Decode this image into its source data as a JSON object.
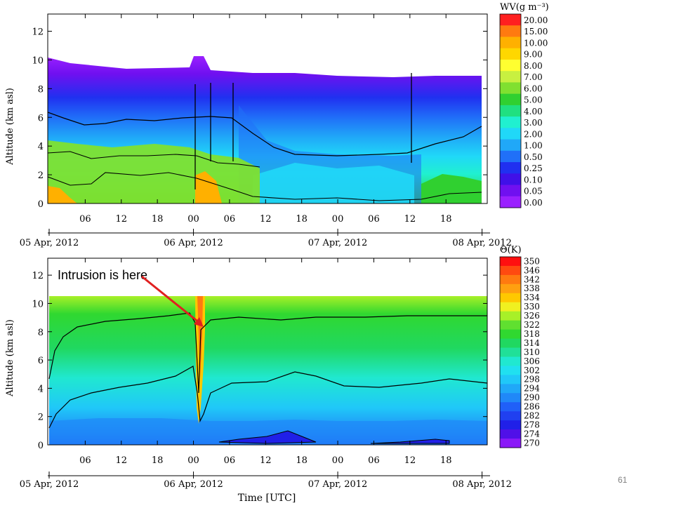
{
  "slide": {
    "page_number": "61"
  },
  "chart_data": [
    {
      "type": "heatmap",
      "title": "",
      "ylabel": "Altitude (km asl)",
      "xlabel": "",
      "ylim": [
        0,
        13
      ],
      "yticks": [
        0,
        2,
        4,
        6,
        8,
        10,
        12
      ],
      "x_hour_ticks": [
        "06",
        "12",
        "18",
        "00",
        "06",
        "12",
        "18",
        "00",
        "06",
        "12",
        "18"
      ],
      "x_hour_values": [
        6,
        12,
        18,
        24,
        30,
        36,
        42,
        48,
        54,
        60,
        66
      ],
      "date_labels": [
        "05 Apr, 2012",
        "06 Apr, 2012",
        "07 Apr, 2012",
        "08 Apr, 2012"
      ],
      "date_values": [
        0,
        24,
        48,
        72
      ],
      "xlim": [
        0,
        72
      ],
      "colorbar": {
        "title": "WV(g m⁻³)",
        "levels": [
          "20.00",
          "15.00",
          "10.00",
          "9.00",
          "8.00",
          "7.00",
          "6.00",
          "5.00",
          "4.00",
          "3.00",
          "2.00",
          "1.00",
          "0.50",
          "0.25",
          "0.10",
          "0.05",
          "0.00"
        ],
        "colors": [
          "#ff2020",
          "#ff7a10",
          "#ffb000",
          "#ffd700",
          "#ffff30",
          "#c8f040",
          "#80e030",
          "#30d030",
          "#20e080",
          "#20f0d0",
          "#20d8f8",
          "#20a8f8",
          "#2070f8",
          "#2030f0",
          "#4010e8",
          "#7010f0",
          "#9a20ff"
        ]
      }
    },
    {
      "type": "heatmap",
      "title": "",
      "ylabel": "Altitude (km asl)",
      "xlabel": "Time [UTC]",
      "ylim": [
        0,
        13
      ],
      "yticks": [
        0,
        2,
        4,
        6,
        8,
        10,
        12
      ],
      "x_hour_ticks": [
        "06",
        "12",
        "18",
        "00",
        "06",
        "12",
        "18",
        "00",
        "06",
        "12",
        "18"
      ],
      "x_hour_values": [
        6,
        12,
        18,
        24,
        30,
        36,
        42,
        48,
        54,
        60,
        66
      ],
      "date_labels": [
        "05 Apr, 2012",
        "06 Apr, 2012",
        "07 Apr, 2012",
        "08 Apr, 2012"
      ],
      "date_values": [
        0,
        24,
        48,
        72
      ],
      "xlim": [
        0,
        72
      ],
      "colorbar": {
        "title": "Θ(K)",
        "levels": [
          "350",
          "346",
          "342",
          "338",
          "334",
          "330",
          "326",
          "322",
          "318",
          "314",
          "310",
          "306",
          "302",
          "298",
          "294",
          "290",
          "286",
          "282",
          "278",
          "274",
          "270"
        ],
        "colors": [
          "#ff1010",
          "#ff4a10",
          "#ff7a10",
          "#ffa010",
          "#ffc800",
          "#f0f020",
          "#a8f028",
          "#60e030",
          "#30d830",
          "#20d860",
          "#20e098",
          "#20e8d0",
          "#20e0f0",
          "#20c8f8",
          "#20a8f8",
          "#2088f8",
          "#2060f8",
          "#2040f0",
          "#2020e8",
          "#5010e8",
          "#8a18f8"
        ]
      },
      "annotation": "Intrusion is here"
    }
  ]
}
